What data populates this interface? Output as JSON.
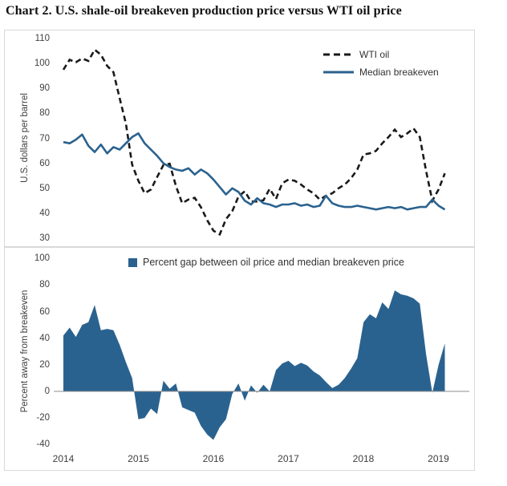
{
  "title": "Chart 2. U.S. shale-oil breakeven production price versus WTI oil price",
  "colors": {
    "accent_blue": "#2a628f",
    "line_black": "#1a1a1a",
    "panel_border": "#d9d9d9",
    "zero_axis": "#8c8c8c",
    "text": "#404040"
  },
  "x_axis": {
    "tick_labels": [
      "2014",
      "2015",
      "2016",
      "2017",
      "2018",
      "2019"
    ],
    "frequency": "monthly"
  },
  "chart_data": [
    {
      "type": "line",
      "ylabel": "U.S. dollars per barrel",
      "ylim": [
        30,
        110
      ],
      "yticks": [
        110,
        100,
        90,
        80,
        70,
        60,
        50,
        40,
        30
      ],
      "grid": false,
      "legend_position": "top-right-inside",
      "x_range": "Jan 2014 - Feb 2019",
      "series": [
        {
          "name": "WTI oil",
          "style": "dashed",
          "color": "#1a1a1a",
          "values": [
            97.5,
            101.5,
            100.5,
            102,
            101,
            105.5,
            103.5,
            99,
            96.5,
            86,
            76,
            59.5,
            53,
            48,
            49.5,
            54.5,
            59.3,
            59.8,
            50.9,
            44,
            45.5,
            46.2,
            42.4,
            37.2,
            33,
            31.5,
            37.6,
            40.8,
            46.7,
            48.8,
            44.7,
            44.7,
            45.2,
            49.8,
            45.7,
            52,
            53.5,
            53,
            51.5,
            49.5,
            48,
            45.5,
            47,
            48,
            50,
            51.5,
            54,
            57.5,
            63.5,
            64,
            65,
            68,
            70.5,
            73.5,
            70.5,
            72,
            74,
            70.5,
            57,
            45,
            49.5,
            56
          ]
        },
        {
          "name": "Median breakeven",
          "style": "solid",
          "color": "#2a628f",
          "values": [
            68.5,
            68,
            69.5,
            71.5,
            67,
            64.5,
            67.5,
            64,
            66.5,
            65.5,
            68,
            70.5,
            72,
            68,
            65.5,
            63,
            60,
            58.5,
            57.5,
            57,
            58,
            55.5,
            57.5,
            56,
            53.5,
            50.5,
            47.5,
            50,
            48.5,
            45,
            43.5,
            46,
            44,
            43.5,
            42.5,
            43.5,
            43.5,
            44,
            43,
            43.5,
            42.5,
            43,
            47,
            44,
            43,
            42.5,
            42.5,
            43,
            42.5,
            42,
            41.5,
            42,
            42.5,
            42,
            42.5,
            41.5,
            42,
            42.5,
            42.5,
            45.5,
            43,
            41.5
          ]
        }
      ]
    },
    {
      "type": "area",
      "name": "Percent gap between oil price and median breakeven price",
      "ylabel": "Percent away from breakeven",
      "ylim": [
        -40,
        100
      ],
      "yticks": [
        100,
        80,
        60,
        40,
        20,
        0,
        -20,
        -40
      ],
      "grid": false,
      "color": "#2a628f",
      "x_range": "Jan 2014 - Feb 2019",
      "values": [
        42,
        48,
        41,
        50,
        52,
        65,
        46,
        47,
        46,
        35,
        22,
        10,
        -21,
        -20,
        -13,
        -17,
        8,
        2,
        6,
        -12,
        -14,
        -16,
        -26,
        -32.5,
        -36.5,
        -27,
        -21,
        -2,
        6,
        -7,
        4.5,
        -1,
        5,
        0,
        16,
        21,
        23,
        19,
        21.5,
        19.5,
        15,
        12,
        7,
        2.5,
        5,
        10,
        17,
        25,
        52,
        58,
        55,
        67,
        62,
        76,
        73,
        72,
        70,
        66,
        28,
        -1,
        20,
        36
      ]
    }
  ]
}
